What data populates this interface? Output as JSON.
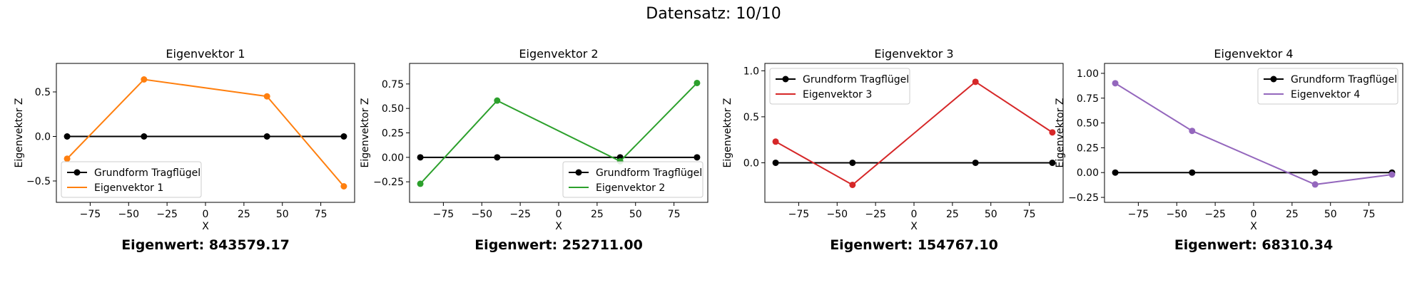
{
  "figure_title": "Datensatz: 10/10",
  "chart_data": [
    {
      "type": "line",
      "title": "Eigenvektor 1",
      "xlabel": "X",
      "ylabel": "Eigenvektor Z",
      "xlim": [
        -97,
        97
      ],
      "ylim": [
        -0.74,
        0.82
      ],
      "xticks": [
        -75,
        -50,
        -25,
        0,
        25,
        50,
        75
      ],
      "yticks": [
        -0.5,
        0.0,
        0.5
      ],
      "ytick_labels": [
        "−0.5",
        "0.0",
        "0.5"
      ],
      "legend_position": "lower-left",
      "x": [
        -90,
        -40,
        40,
        90
      ],
      "series": [
        {
          "name": "Grundform Tragflügel",
          "values": [
            0,
            0,
            0,
            0
          ],
          "color": "#000000"
        },
        {
          "name": "Eigenvektor 1",
          "values": [
            -0.25,
            0.64,
            0.45,
            -0.56
          ],
          "color": "#ff7f0e"
        }
      ],
      "eigenvalue_label": "Eigenwert: 843579.17"
    },
    {
      "type": "line",
      "title": "Eigenvektor 2",
      "xlabel": "X",
      "ylabel": "Eigenvektor Z",
      "xlim": [
        -97,
        97
      ],
      "ylim": [
        -0.46,
        0.96
      ],
      "xticks": [
        -75,
        -50,
        -25,
        0,
        25,
        50,
        75
      ],
      "yticks": [
        -0.25,
        0.0,
        0.25,
        0.5,
        0.75
      ],
      "ytick_labels": [
        "−0.25",
        "0.00",
        "0.25",
        "0.50",
        "0.75"
      ],
      "legend_position": "lower-right",
      "x": [
        -90,
        -40,
        40,
        90
      ],
      "series": [
        {
          "name": "Grundform Tragflügel",
          "values": [
            0,
            0,
            0,
            0
          ],
          "color": "#000000"
        },
        {
          "name": "Eigenvektor 2",
          "values": [
            -0.27,
            0.58,
            -0.04,
            0.76
          ],
          "color": "#2ca02c"
        }
      ],
      "eigenvalue_label": "Eigenwert: 252711.00"
    },
    {
      "type": "line",
      "title": "Eigenvektor 3",
      "xlabel": "X",
      "ylabel": "Eigenvektor Z",
      "xlim": [
        -97,
        97
      ],
      "ylim": [
        -0.43,
        1.08
      ],
      "xticks": [
        -75,
        -50,
        -25,
        0,
        25,
        50,
        75
      ],
      "yticks": [
        0.0,
        0.5,
        1.0
      ],
      "ytick_labels": [
        "0.0",
        "0.5",
        "1.0"
      ],
      "legend_position": "upper-left",
      "x": [
        -90,
        -40,
        40,
        90
      ],
      "series": [
        {
          "name": "Grundform Tragflügel",
          "values": [
            0,
            0,
            0,
            0
          ],
          "color": "#000000"
        },
        {
          "name": "Eigenvektor 3",
          "values": [
            0.23,
            -0.24,
            0.88,
            0.33
          ],
          "color": "#d62728"
        }
      ],
      "eigenvalue_label": "Eigenwert: 154767.10"
    },
    {
      "type": "line",
      "title": "Eigenvektor 4",
      "xlabel": "X",
      "ylabel": "Eigenvektor Z",
      "xlim": [
        -97,
        97
      ],
      "ylim": [
        -0.3,
        1.1
      ],
      "xticks": [
        -75,
        -50,
        -25,
        0,
        25,
        50,
        75
      ],
      "yticks": [
        -0.25,
        0.0,
        0.25,
        0.5,
        0.75,
        1.0
      ],
      "ytick_labels": [
        "−0.25",
        "0.00",
        "0.25",
        "0.50",
        "0.75",
        "1.00"
      ],
      "legend_position": "upper-right",
      "x": [
        -90,
        -40,
        40,
        90
      ],
      "series": [
        {
          "name": "Grundform Tragflügel",
          "values": [
            0,
            0,
            0,
            0
          ],
          "color": "#000000"
        },
        {
          "name": "Eigenvektor 4",
          "values": [
            0.9,
            0.42,
            -0.12,
            -0.02
          ],
          "color": "#9467bd"
        }
      ],
      "eigenvalue_label": "Eigenwert: 68310.34"
    }
  ]
}
